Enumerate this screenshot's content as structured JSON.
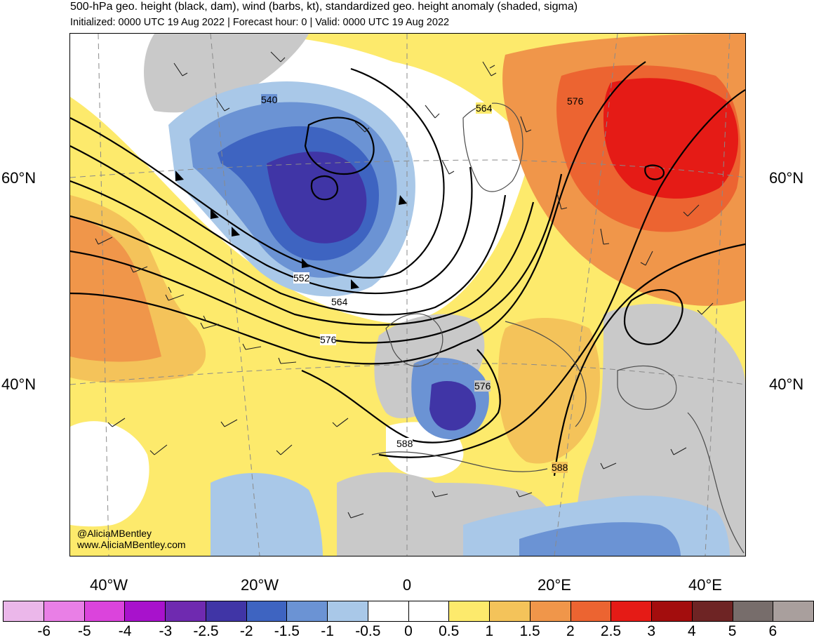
{
  "header": {
    "title": "500-hPa geo. height (black, dam), wind (barbs, kt), standardized geo. height anomaly (shaded, sigma)",
    "subtitle": "Initialized: 0000 UTC 19 Aug 2022 | Forecast hour: 0 | Valid: 0000 UTC 19 Aug 2022"
  },
  "map": {
    "lat_labels": {
      "north60": "60°N",
      "north40": "40°N"
    },
    "lon_labels": [
      "40°W",
      "20°W",
      "0",
      "20°E",
      "40°E"
    ],
    "contour_labels": [
      {
        "text": "540"
      },
      {
        "text": "552"
      },
      {
        "text": "564"
      },
      {
        "text": "564"
      },
      {
        "text": "576"
      },
      {
        "text": "576"
      },
      {
        "text": "576"
      },
      {
        "text": "588"
      },
      {
        "text": "588"
      }
    ],
    "anomaly_colors": {
      "minus2_5": "#4035a6",
      "minus2": "#3e64c1",
      "minus1_5": "#6b93d4",
      "minus1": "#a9c8e8",
      "zero": "#ffffff",
      "plus0_5": "#fdea6c",
      "plus1": "#f4c35a",
      "plus1_5": "#f0964a",
      "plus2": "#ec6431",
      "plus2_5": "#e51b16",
      "land_gray": "#c9c9c9"
    }
  },
  "credits": {
    "handle": "@AliciaMBentley",
    "website": "www.AliciaMBentley.com"
  },
  "colorbar": {
    "segment_colors": [
      "#ebb7ea",
      "#e97fe6",
      "#db44dc",
      "#a812cc",
      "#6f2ab0",
      "#4035a6",
      "#3e64c1",
      "#6b93d4",
      "#a9c8e8",
      "#ffffff",
      "#ffffff",
      "#fdea6c",
      "#f4c35a",
      "#f0964a",
      "#ec6431",
      "#e51b16",
      "#a30d0d",
      "#6e2424",
      "#776d6b",
      "#a99f9d"
    ],
    "tick_labels": [
      "-6",
      "-5",
      "-4",
      "-3",
      "-2.5",
      "-2",
      "-1.5",
      "-1",
      "-0.5",
      "0",
      "0.5",
      "1",
      "1.5",
      "2",
      "2.5",
      "3",
      "4",
      "5",
      "6"
    ]
  }
}
